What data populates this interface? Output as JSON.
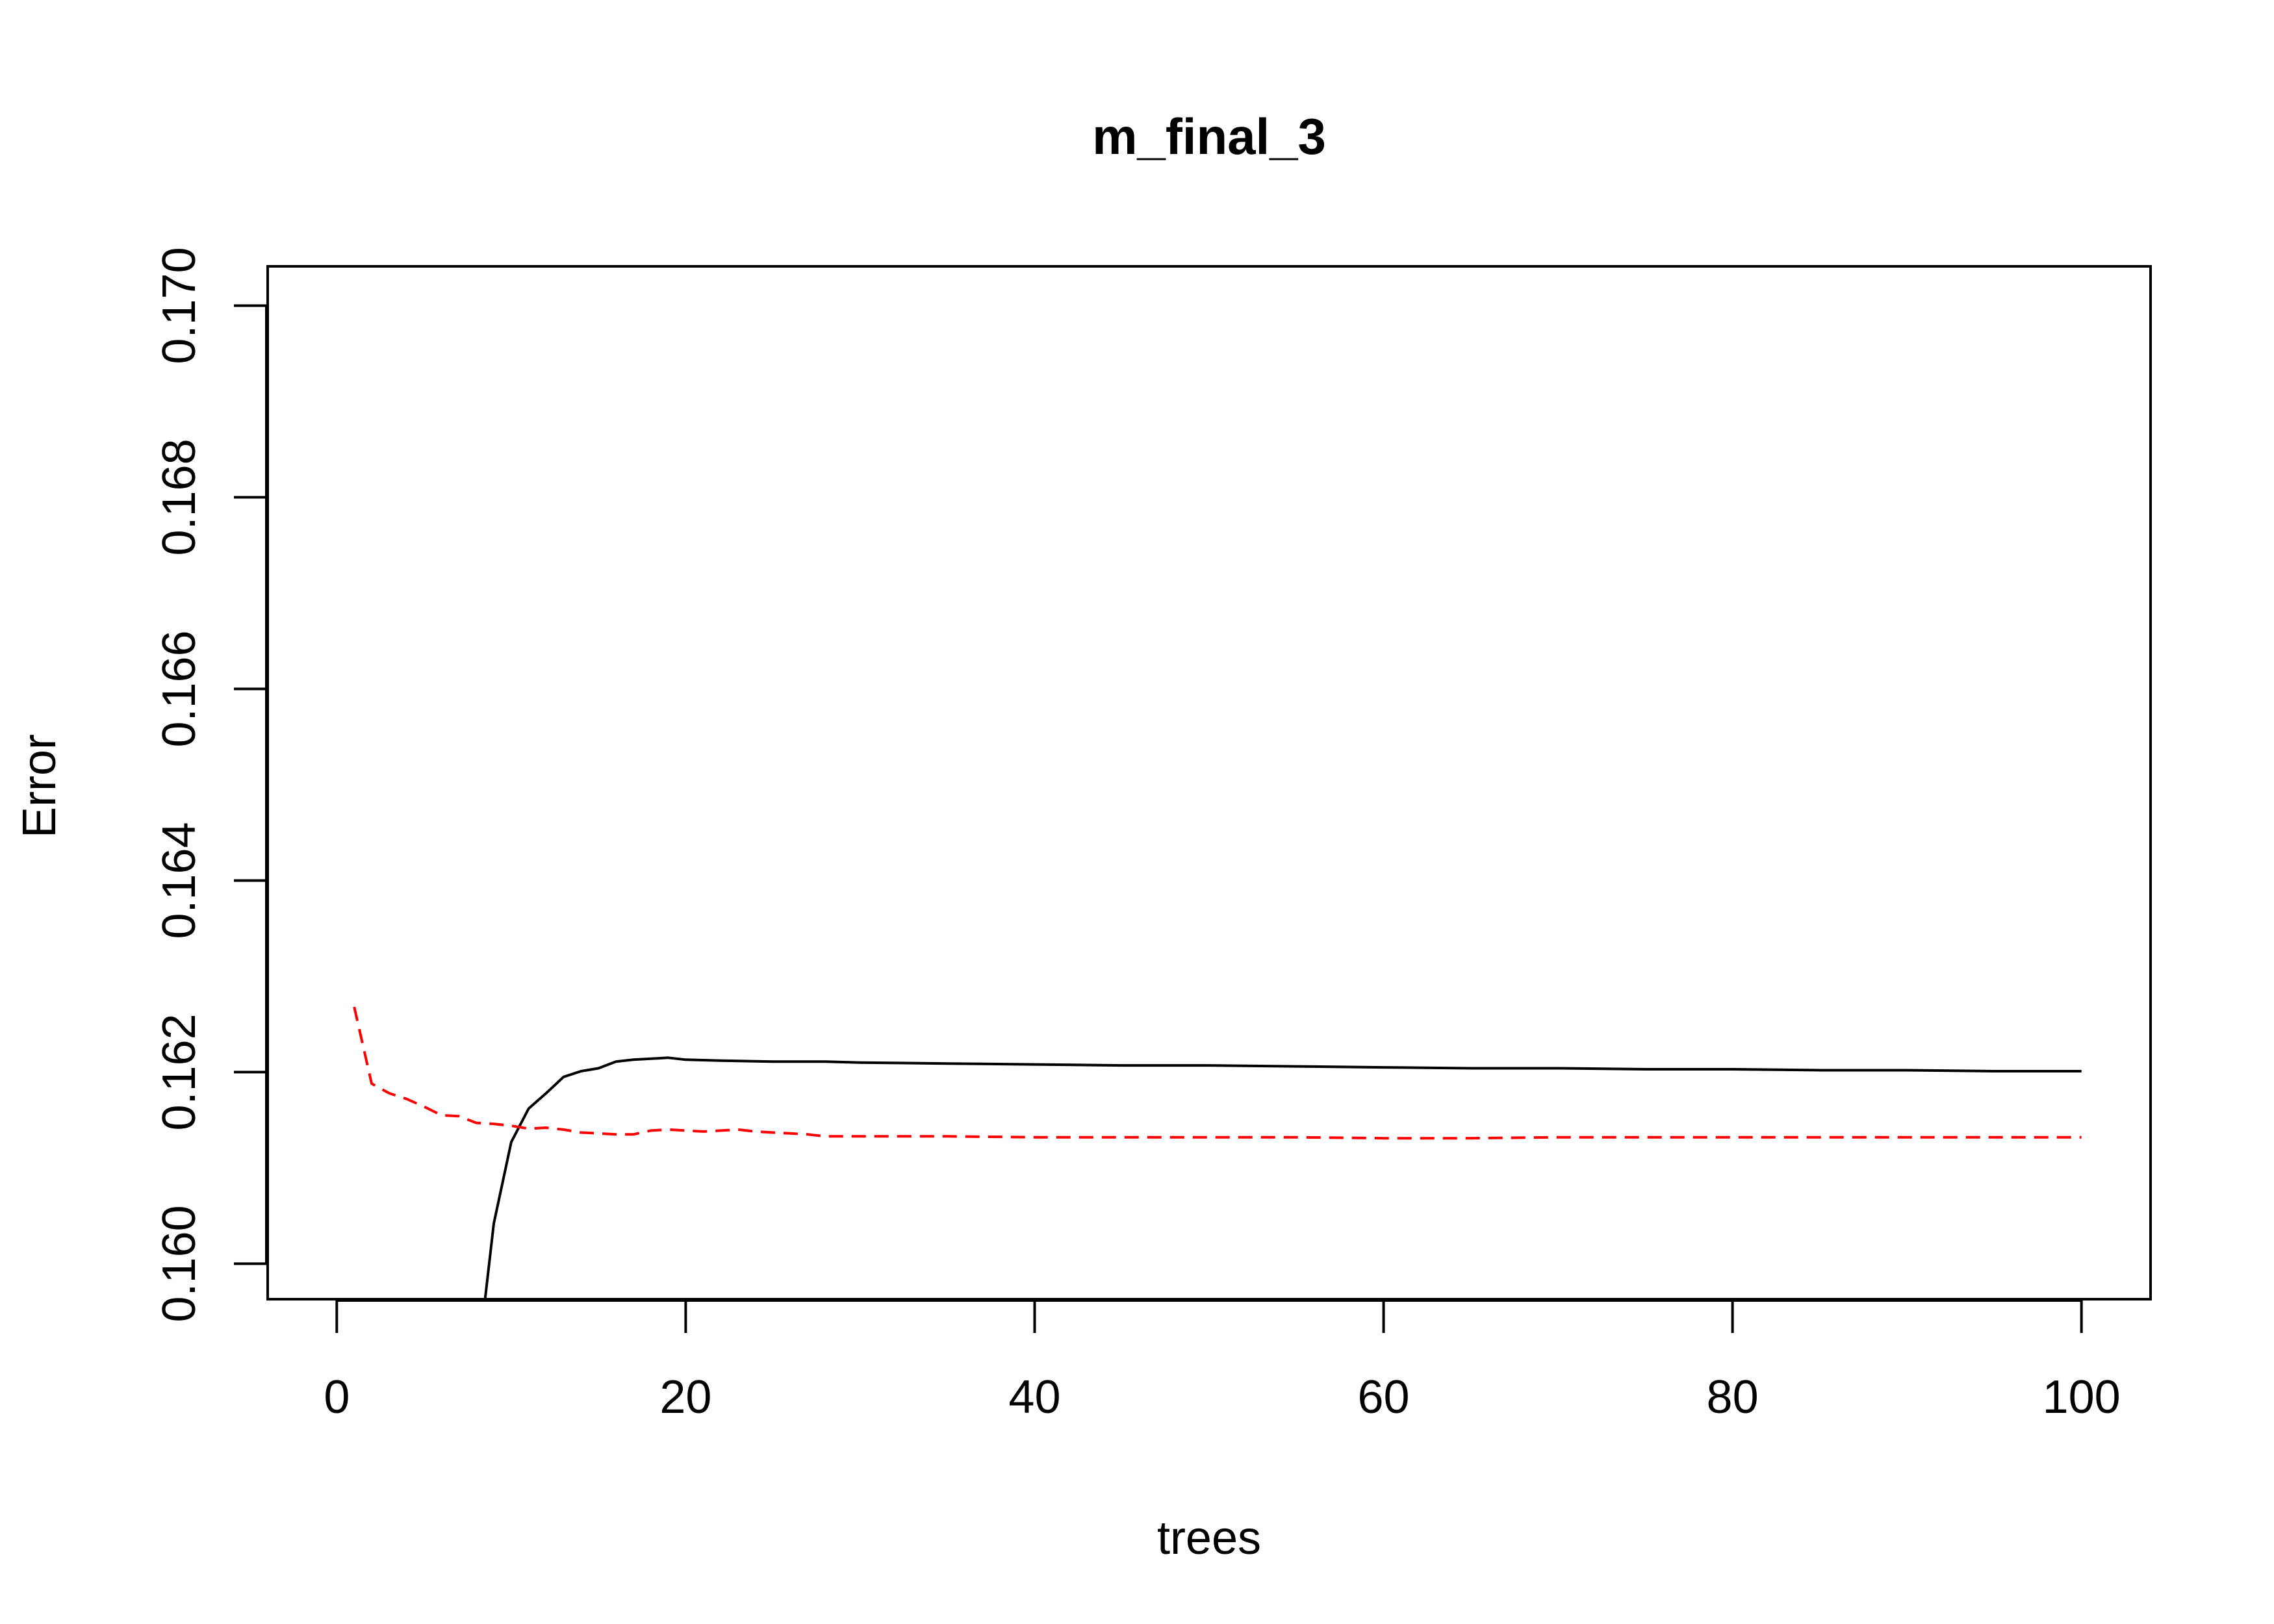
{
  "chart_data": {
    "type": "line",
    "title": "m_final_3",
    "xlabel": "trees",
    "ylabel": "Error",
    "xlim": [
      -3.96,
      103.96
    ],
    "ylim": [
      0.15963,
      0.17041
    ],
    "xticks": [
      0,
      20,
      40,
      60,
      80,
      100
    ],
    "xtick_labels": [
      "0",
      "20",
      "40",
      "60",
      "80",
      "100"
    ],
    "yticks": [
      0.16,
      0.162,
      0.164,
      0.166,
      0.168,
      0.17
    ],
    "ytick_labels": [
      "0.160",
      "0.162",
      "0.164",
      "0.166",
      "0.168",
      "0.170"
    ],
    "grid": false,
    "legend": "none",
    "series": [
      {
        "color": "#000000",
        "dash": "solid",
        "x": [
          8.5,
          9,
          10,
          11,
          12,
          13,
          14,
          15,
          16,
          17,
          18,
          19,
          20,
          22,
          25,
          28,
          30,
          35,
          40,
          45,
          50,
          55,
          60,
          65,
          70,
          75,
          80,
          85,
          90,
          95,
          100
        ],
        "y": [
          0.15963,
          0.16042,
          0.16127,
          0.16162,
          0.16178,
          0.16195,
          0.16201,
          0.16204,
          0.16211,
          0.16213,
          0.16214,
          0.16215,
          0.16213,
          0.16212,
          0.16211,
          0.16211,
          0.1621,
          0.16209,
          0.16208,
          0.16207,
          0.16207,
          0.16206,
          0.16205,
          0.16204,
          0.16204,
          0.16203,
          0.16203,
          0.16202,
          0.16202,
          0.16201,
          0.16201
        ]
      },
      {
        "color": "#ff0000",
        "dash": "dashed",
        "x": [
          1,
          2,
          3,
          4,
          5,
          6,
          7,
          8,
          9,
          10,
          11,
          12,
          13,
          14,
          15,
          16,
          17,
          18,
          19,
          20,
          21,
          22,
          23,
          24,
          25,
          26,
          27,
          28,
          29,
          30,
          35,
          40,
          45,
          50,
          55,
          60,
          65,
          70,
          75,
          80,
          85,
          90,
          95,
          100
        ],
        "y": [
          0.16268,
          0.16188,
          0.16178,
          0.16172,
          0.16164,
          0.16155,
          0.16154,
          0.16147,
          0.16146,
          0.16144,
          0.16141,
          0.16142,
          0.1614,
          0.16137,
          0.16136,
          0.16135,
          0.16135,
          0.16139,
          0.1614,
          0.16139,
          0.16138,
          0.16139,
          0.1614,
          0.16138,
          0.16137,
          0.16136,
          0.16135,
          0.16133,
          0.16133,
          0.16133,
          0.16133,
          0.16132,
          0.16132,
          0.16132,
          0.16132,
          0.16131,
          0.16131,
          0.16132,
          0.16132,
          0.16132,
          0.16132,
          0.16132,
          0.16132,
          0.16132
        ]
      }
    ]
  }
}
